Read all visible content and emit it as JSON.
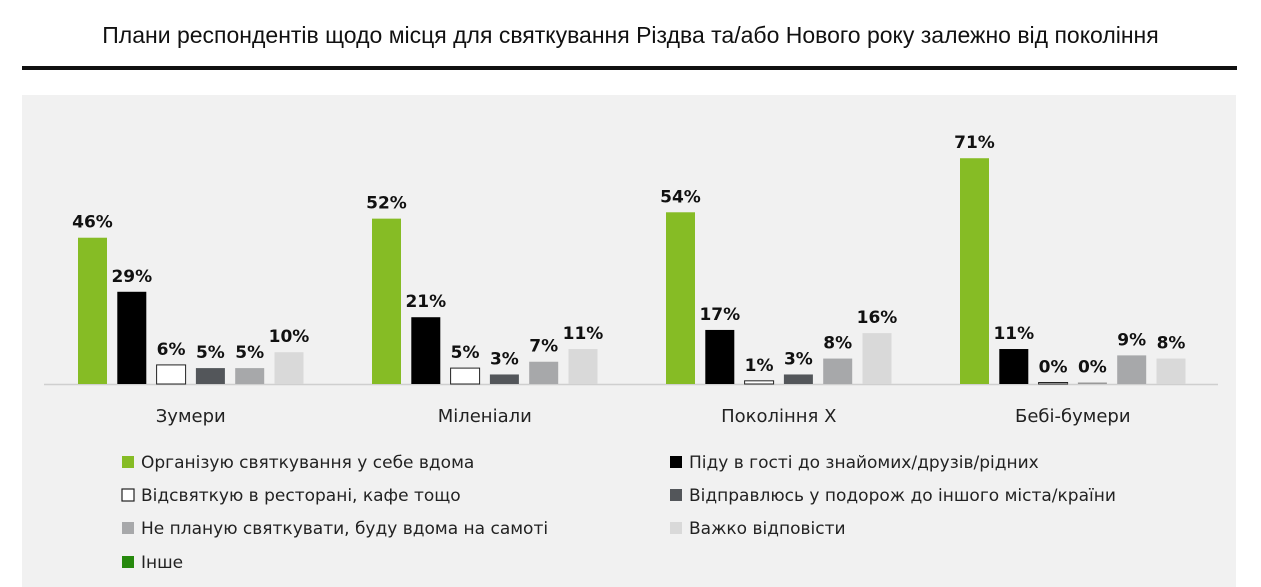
{
  "chart_data": {
    "type": "bar",
    "title": "Плани респондентів щодо місця для святкування Різдва та/або Нового року залежно від покоління",
    "xlabel": "",
    "ylabel": "",
    "ylim": [
      0,
      80
    ],
    "grid": false,
    "legend_position": "bottom",
    "categories": [
      "Зумери",
      "Міленіали",
      "Покоління Х",
      "Бебі-бумери"
    ],
    "series": [
      {
        "name": "Організую святкування у себе вдома",
        "color": "#86bc25",
        "values": [
          46,
          52,
          54,
          71
        ]
      },
      {
        "name": "Піду в гості до знайомих/друзів/рідних",
        "color": "#000000",
        "values": [
          29,
          21,
          17,
          11
        ]
      },
      {
        "name": "Відсвяткую в ресторані, кафе тощо",
        "color": "#ffffff",
        "values": [
          6,
          5,
          1,
          0
        ]
      },
      {
        "name": "Відправлюсь у подорож до іншого міста/країни",
        "color": "#53565a",
        "values": [
          5,
          3,
          3,
          0
        ]
      },
      {
        "name": "Не планую святкувати, буду вдома на самоті",
        "color": "#a7a8aa",
        "values": [
          5,
          7,
          8,
          9
        ]
      },
      {
        "name": "Важко відповісти",
        "color": "#d9d9d9",
        "values": [
          10,
          11,
          16,
          8
        ]
      },
      {
        "name": "Інше",
        "color": "#26890d",
        "values": [
          null,
          null,
          null,
          null
        ]
      }
    ],
    "value_labels": [
      [
        "46%",
        "29%",
        "6%",
        "5%",
        "5%",
        "10%"
      ],
      [
        "52%",
        "21%",
        "5%",
        "3%",
        "7%",
        "11%"
      ],
      [
        "54%",
        "17%",
        "1%",
        "3%",
        "8%",
        "16%"
      ],
      [
        "71%",
        "11%",
        "0%",
        "0%",
        "9%",
        "8%"
      ]
    ]
  }
}
